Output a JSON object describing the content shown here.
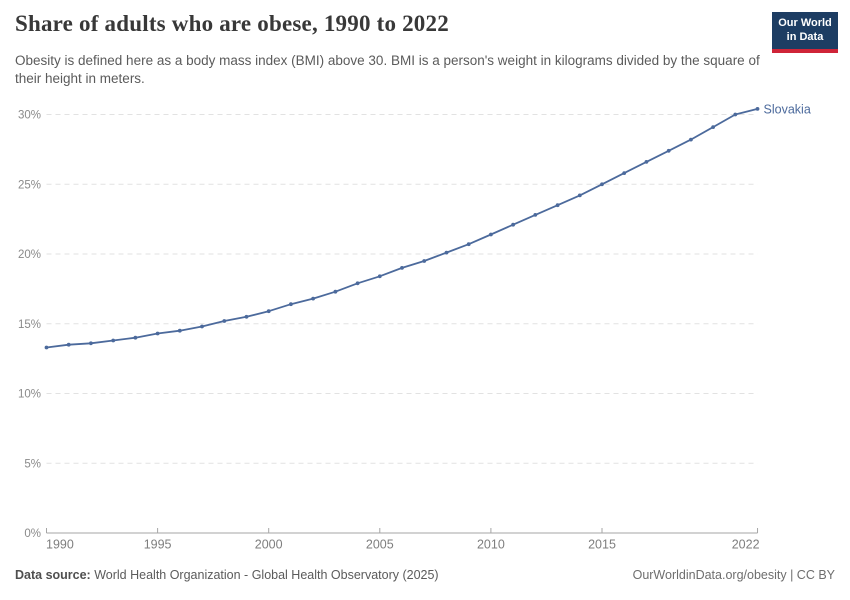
{
  "header": {
    "title": "Share of adults who are obese, 1990 to 2022",
    "subtitle": "Obesity is defined here as a body mass index (BMI) above 30. BMI is a person's weight in kilograms divided by the square of their height in meters.",
    "logo": {
      "line1": "Our World",
      "line2": "in Data",
      "bg_color": "#1d3d63",
      "accent_color": "#cf2438"
    }
  },
  "footer": {
    "source_label": "Data source:",
    "source_value": "World Health Organization - Global Health Observatory (2025)",
    "link": "OurWorldinData.org/obesity | CC BY"
  },
  "chart_data": {
    "type": "line",
    "title": "Share of adults who are obese, 1990 to 2022",
    "xlabel": "",
    "ylabel": "",
    "xlim": [
      1990,
      2022
    ],
    "ylim": [
      0,
      31
    ],
    "xticks": [
      1990,
      1995,
      2000,
      2005,
      2010,
      2015,
      2022
    ],
    "yticks": [
      0,
      5,
      10,
      15,
      20,
      25,
      30
    ],
    "ytick_suffix": "%",
    "grid": "dashed-horizontal",
    "legend": "end-of-line-label",
    "x": [
      1990,
      1991,
      1992,
      1993,
      1994,
      1995,
      1996,
      1997,
      1998,
      1999,
      2000,
      2001,
      2002,
      2003,
      2004,
      2005,
      2006,
      2007,
      2008,
      2009,
      2010,
      2011,
      2012,
      2013,
      2014,
      2015,
      2016,
      2017,
      2018,
      2019,
      2020,
      2021,
      2022
    ],
    "series": [
      {
        "name": "Slovakia",
        "color": "#4C6A9C",
        "values": [
          13.3,
          13.5,
          13.6,
          13.8,
          14.0,
          14.3,
          14.5,
          14.8,
          15.2,
          15.5,
          15.9,
          16.4,
          16.8,
          17.3,
          17.9,
          18.4,
          19.0,
          19.5,
          20.1,
          20.7,
          21.4,
          22.1,
          22.8,
          23.5,
          24.2,
          25.0,
          25.8,
          26.6,
          27.4,
          28.2,
          29.1,
          30.0,
          30.4
        ]
      }
    ],
    "axis_colors": {
      "gridline": "#e2e2e2",
      "axis_line": "#a5a5a5",
      "tick_label_y": "#8a8a8a",
      "tick_label_x": "#7e7e7e"
    }
  }
}
